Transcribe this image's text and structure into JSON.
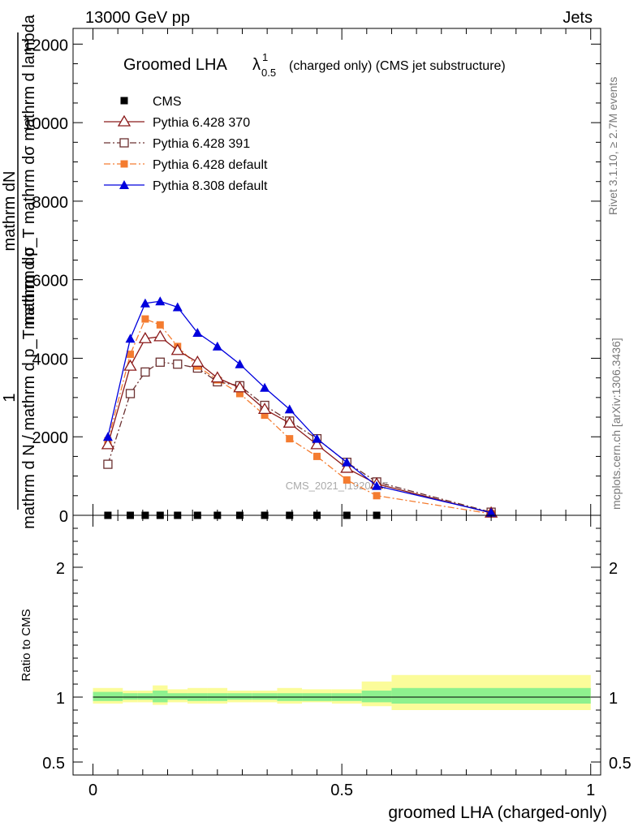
{
  "header": {
    "left": "13000 GeV pp",
    "right": "Jets"
  },
  "side_labels": {
    "rivet": "Rivet 3.1.10, ≥ 2.7M events",
    "mcplots": "mcplots.cern.ch [arXiv:1306.3436]"
  },
  "watermark": "CMS_2021_I1920187",
  "chart_data": [
    {
      "type": "line",
      "title_main": "Groomed LHA",
      "title_lambda": "λ",
      "title_sub": "0.5",
      "title_sup": "1",
      "title_rest": "(charged only) (CMS jet substructure)",
      "ylabel_numerator_top": "mathrm dN",
      "ylabel_numerator_bottom": "mathrm d p_T mathrm dσ mathrm d lambda",
      "ylabel_one": "1",
      "ylabel_denominator": "mathrm d N / mathrm d p_T mathrm dσ",
      "xlim": [
        -0.04,
        1.02
      ],
      "ylim": [
        0,
        12400
      ],
      "yticks": [
        0,
        2000,
        4000,
        6000,
        8000,
        10000,
        12000
      ],
      "ytick_labels": [
        "0",
        "2000",
        "4000",
        "6000",
        "8000",
        "10000",
        "12000"
      ],
      "x": [
        0.03,
        0.075,
        0.105,
        0.135,
        0.17,
        0.21,
        0.25,
        0.295,
        0.345,
        0.395,
        0.45,
        0.51,
        0.57,
        0.8
      ],
      "legend": [
        "CMS",
        "Pythia 6.428 370",
        "Pythia 6.428 391",
        "Pythia 6.428 default",
        "Pythia 8.308 default"
      ],
      "series": [
        {
          "name": "CMS",
          "color": "#000000",
          "marker": "square-filled",
          "line": "none",
          "values": [
            0,
            0,
            0,
            0,
            0,
            0,
            0,
            0,
            0,
            0,
            0,
            0,
            0,
            null
          ]
        },
        {
          "name": "Pythia 6.428 370",
          "color": "#8b1a1a",
          "marker": "triangle-open",
          "line": "solid",
          "values": [
            1800,
            3800,
            4500,
            4550,
            4200,
            3900,
            3500,
            3250,
            2700,
            2350,
            1800,
            1200,
            800,
            60
          ]
        },
        {
          "name": "Pythia 6.428 391",
          "color": "#6b3030",
          "marker": "square-open",
          "line": "dashdot",
          "values": [
            1300,
            3100,
            3650,
            3900,
            3850,
            3750,
            3400,
            3300,
            2800,
            2400,
            1950,
            1350,
            850,
            80
          ]
        },
        {
          "name": "Pythia 6.428 default",
          "color": "#f47c30",
          "marker": "square-filled",
          "line": "dashdot",
          "values": [
            1900,
            4100,
            5000,
            4850,
            4300,
            3800,
            3450,
            3100,
            2550,
            1950,
            1500,
            900,
            500,
            40
          ]
        },
        {
          "name": "Pythia 8.308 default",
          "color": "#0000dd",
          "marker": "triangle-filled",
          "line": "solid",
          "values": [
            2000,
            4500,
            5400,
            5450,
            5300,
            4650,
            4300,
            3850,
            3250,
            2700,
            1950,
            1350,
            750,
            70
          ]
        }
      ]
    },
    {
      "type": "band",
      "ylabel": "Ratio to CMS",
      "xlabel": "groomed LHA (charged-only)",
      "xlim": [
        -0.04,
        1.02
      ],
      "ylim": [
        0.4,
        2.4
      ],
      "ytick_labels": [
        "0.5",
        "1",
        "2"
      ],
      "xtick_labels": [
        "0",
        "0.5",
        "1"
      ],
      "xticks": [
        0,
        0.5,
        1
      ],
      "yticks": [
        0.5,
        1,
        2
      ],
      "bins": [
        {
          "x0": 0.0,
          "x1": 0.06,
          "inner": [
            0.97,
            1.04
          ],
          "outer": [
            0.95,
            1.07
          ]
        },
        {
          "x0": 0.06,
          "x1": 0.09,
          "inner": [
            0.98,
            1.03
          ],
          "outer": [
            0.96,
            1.05
          ]
        },
        {
          "x0": 0.09,
          "x1": 0.12,
          "inner": [
            0.98,
            1.03
          ],
          "outer": [
            0.96,
            1.05
          ]
        },
        {
          "x0": 0.12,
          "x1": 0.15,
          "inner": [
            0.96,
            1.05
          ],
          "outer": [
            0.94,
            1.09
          ]
        },
        {
          "x0": 0.15,
          "x1": 0.19,
          "inner": [
            0.98,
            1.03
          ],
          "outer": [
            0.96,
            1.06
          ]
        },
        {
          "x0": 0.19,
          "x1": 0.23,
          "inner": [
            0.97,
            1.03
          ],
          "outer": [
            0.95,
            1.07
          ]
        },
        {
          "x0": 0.23,
          "x1": 0.27,
          "inner": [
            0.97,
            1.03
          ],
          "outer": [
            0.95,
            1.07
          ]
        },
        {
          "x0": 0.27,
          "x1": 0.32,
          "inner": [
            0.98,
            1.03
          ],
          "outer": [
            0.96,
            1.05
          ]
        },
        {
          "x0": 0.32,
          "x1": 0.37,
          "inner": [
            0.98,
            1.03
          ],
          "outer": [
            0.96,
            1.05
          ]
        },
        {
          "x0": 0.37,
          "x1": 0.42,
          "inner": [
            0.97,
            1.03
          ],
          "outer": [
            0.95,
            1.07
          ]
        },
        {
          "x0": 0.42,
          "x1": 0.48,
          "inner": [
            0.97,
            1.03
          ],
          "outer": [
            0.96,
            1.06
          ]
        },
        {
          "x0": 0.48,
          "x1": 0.54,
          "inner": [
            0.97,
            1.03
          ],
          "outer": [
            0.95,
            1.06
          ]
        },
        {
          "x0": 0.54,
          "x1": 0.6,
          "inner": [
            0.96,
            1.05
          ],
          "outer": [
            0.93,
            1.12
          ]
        },
        {
          "x0": 0.6,
          "x1": 1.0,
          "inner": [
            0.95,
            1.07
          ],
          "outer": [
            0.9,
            1.17
          ]
        }
      ],
      "inner_color": "#8ef18e",
      "outer_color": "#fbfc9a"
    }
  ]
}
